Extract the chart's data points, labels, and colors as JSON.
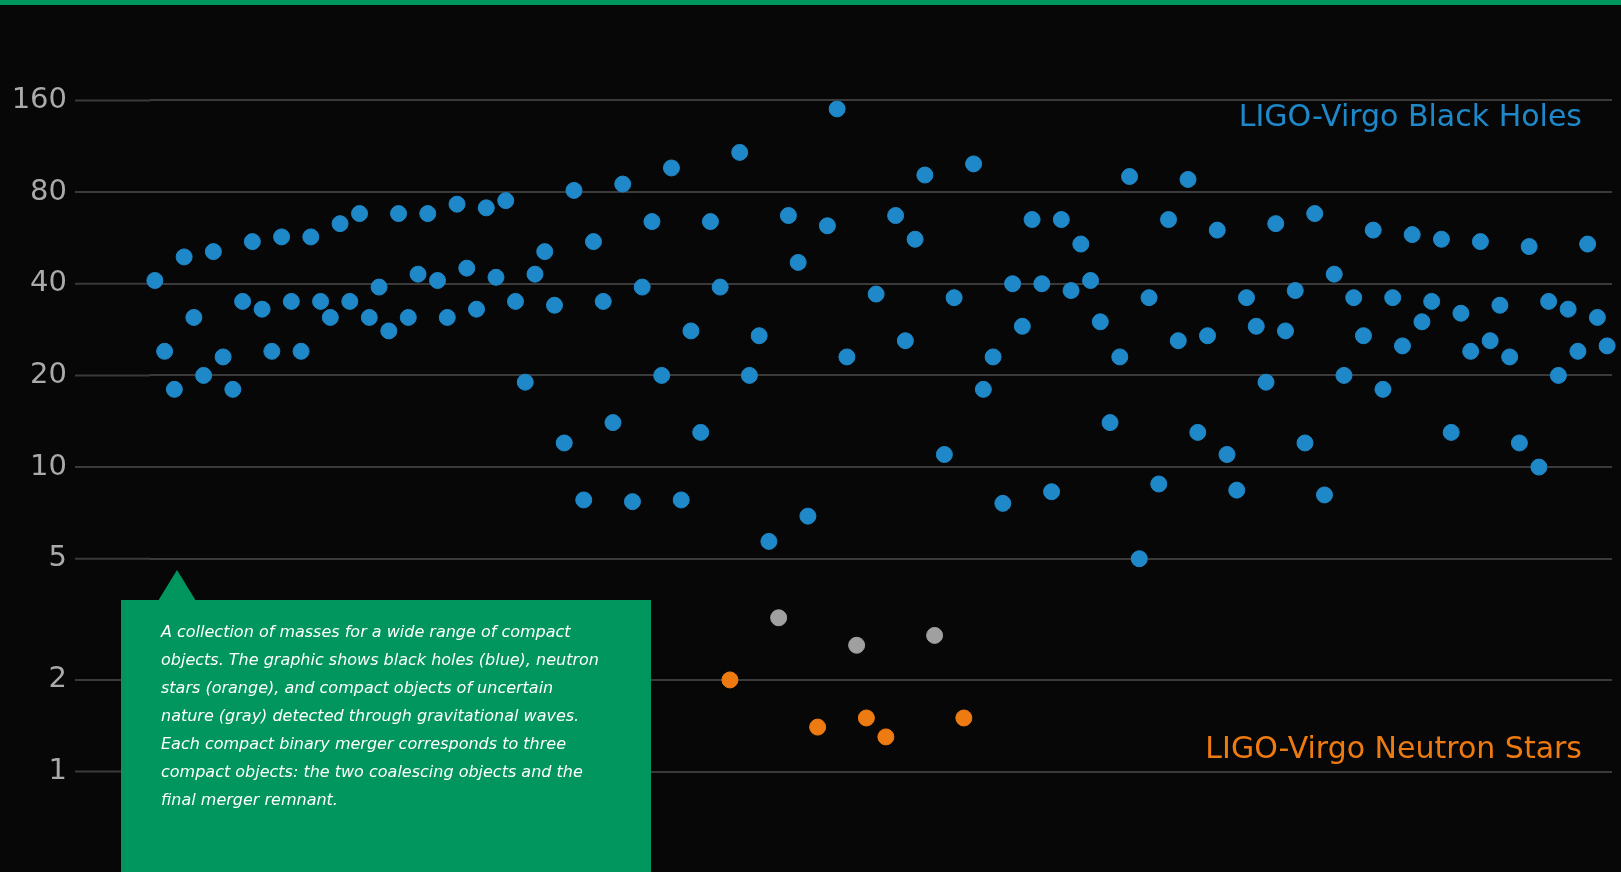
{
  "chart_data": {
    "type": "scatter",
    "log": "y",
    "ylim": [
      1,
      160
    ],
    "yticks": [
      1,
      2,
      5,
      10,
      20,
      40,
      80,
      160
    ],
    "tick_labels": "y",
    "grid": "y",
    "legend": false,
    "marker": "circle",
    "annotations": [
      "A collection of masses for a wide range of compact objects. The graphic shows black holes (blue), neutron stars (orange), and compact objects of uncertain nature (gray) detected through gravitational waves. Each compact binary merger corresponds to three compact objects: the two coalescing objects and the final merger remnant."
    ],
    "categories": [
      null,
      null,
      null,
      null,
      null,
      null,
      null,
      null,
      null,
      null,
      null,
      null,
      null,
      null,
      null,
      null,
      null,
      null,
      null,
      null,
      null,
      null,
      null,
      null,
      null,
      null,
      null,
      null,
      null,
      null,
      null,
      null,
      null,
      null,
      null,
      null,
      null,
      null,
      null,
      null,
      null,
      null,
      null,
      null,
      null,
      null,
      null,
      null,
      null,
      null,
      null,
      null,
      null,
      null,
      null,
      null,
      null,
      null,
      null,
      null,
      null,
      null,
      null,
      null,
      null,
      null,
      null,
      null,
      null,
      null,
      null,
      null,
      null,
      null,
      null,
      null,
      null,
      null,
      null,
      null,
      null,
      null,
      null,
      null,
      null,
      null,
      null,
      null,
      null,
      null,
      null,
      null,
      null,
      null,
      null,
      null,
      null,
      null,
      null,
      null,
      null,
      null,
      null,
      null,
      null,
      null,
      null,
      null,
      null,
      null,
      null,
      null,
      null,
      null,
      null,
      null,
      null,
      null,
      null,
      null,
      null,
      null,
      null,
      null,
      null,
      null,
      null,
      null,
      null,
      null,
      null,
      null,
      null,
      null,
      null,
      null,
      null,
      null,
      null,
      null,
      null,
      null,
      null,
      null,
      null,
      null,
      null,
      null,
      null,
      null
    ],
    "series": [
      {
        "name": "LIGO-Virgo Black Holes",
        "color": "#1e88c9",
        "values": [
          41,
          24,
          18,
          49,
          31,
          20,
          51,
          23,
          18,
          35,
          55,
          33,
          24,
          57,
          35,
          24,
          57,
          35,
          31,
          63,
          35,
          68,
          31,
          39,
          28,
          68,
          31,
          43,
          68,
          41,
          31,
          73,
          45,
          33,
          71,
          42,
          75,
          35,
          19,
          43,
          51,
          34,
          12,
          81,
          7.8,
          55,
          35,
          14,
          85,
          7.7,
          39,
          64,
          20,
          96,
          7.8,
          28,
          13,
          64,
          39,
          null,
          108,
          20,
          27,
          5.7,
          null,
          67,
          47,
          6.9,
          null,
          62,
          150,
          23,
          null,
          null,
          37,
          null,
          67,
          26,
          56,
          91,
          null,
          11,
          36,
          null,
          99,
          18,
          23,
          7.6,
          40,
          29,
          65,
          40,
          8.3,
          65,
          38,
          54,
          41,
          30,
          14,
          23,
          90,
          5,
          36,
          8.8,
          65,
          26,
          88,
          13,
          27,
          60,
          11,
          8.4,
          36,
          29,
          19,
          63,
          28,
          38,
          12,
          68,
          8.1,
          43,
          20,
          36,
          27,
          60,
          18,
          36,
          25,
          58,
          30,
          35,
          56,
          13,
          32,
          24,
          55,
          26,
          34,
          23,
          12,
          53,
          10,
          35,
          20,
          33,
          24,
          54,
          31,
          25
        ]
      },
      {
        "name": "LIGO-Virgo Neutron Stars",
        "color": "#ee7a12",
        "values": [
          null,
          null,
          null,
          null,
          null,
          null,
          null,
          null,
          null,
          null,
          null,
          null,
          null,
          null,
          null,
          null,
          null,
          null,
          null,
          null,
          null,
          null,
          null,
          null,
          null,
          null,
          null,
          null,
          null,
          null,
          null,
          null,
          null,
          null,
          null,
          null,
          null,
          null,
          null,
          null,
          null,
          null,
          null,
          null,
          null,
          null,
          null,
          null,
          null,
          null,
          null,
          null,
          null,
          null,
          null,
          null,
          null,
          null,
          null,
          2.0,
          null,
          null,
          null,
          null,
          null,
          null,
          null,
          null,
          1.4,
          null,
          null,
          null,
          null,
          1.5,
          null,
          1.3,
          null,
          null,
          null,
          null,
          null,
          null,
          null,
          1.5,
          null,
          null,
          null,
          null,
          null,
          null,
          null,
          null,
          null,
          null,
          null,
          null,
          null,
          null,
          null,
          null,
          null,
          null,
          null,
          null,
          null,
          null,
          null,
          null,
          null,
          null,
          null,
          null,
          null,
          null,
          null,
          null,
          null,
          null,
          null,
          null,
          null,
          null,
          null,
          null,
          null,
          null,
          null,
          null,
          null,
          null,
          null,
          null,
          null,
          null,
          null,
          null,
          null,
          null,
          null,
          null,
          null,
          null,
          null,
          null,
          null,
          null,
          null,
          null,
          null,
          null
        ]
      },
      {
        "color": "#a0a0a0",
        "values": [
          null,
          null,
          null,
          null,
          null,
          null,
          null,
          null,
          null,
          null,
          null,
          null,
          null,
          null,
          null,
          null,
          null,
          null,
          null,
          null,
          null,
          null,
          null,
          null,
          null,
          null,
          null,
          null,
          null,
          null,
          null,
          null,
          null,
          null,
          null,
          null,
          null,
          null,
          null,
          null,
          null,
          null,
          null,
          null,
          null,
          null,
          null,
          null,
          null,
          null,
          null,
          null,
          null,
          null,
          null,
          null,
          null,
          null,
          null,
          null,
          null,
          null,
          null,
          null,
          3.2,
          null,
          null,
          null,
          null,
          null,
          null,
          null,
          2.6,
          null,
          null,
          null,
          null,
          null,
          null,
          null,
          2.8,
          null,
          null,
          null,
          null,
          null,
          null,
          null,
          null,
          null,
          null,
          null,
          null,
          null,
          null,
          null,
          null,
          null,
          null,
          null,
          null,
          null,
          null,
          null,
          null,
          null,
          null,
          null,
          null,
          null,
          null,
          null,
          null,
          null,
          null,
          null,
          null,
          null,
          null,
          null,
          null,
          null,
          null,
          null,
          null,
          null,
          null,
          null,
          null,
          null,
          null,
          null,
          null,
          null,
          null,
          null,
          null,
          null,
          null,
          null,
          null,
          null,
          null,
          null,
          null,
          null,
          null,
          null,
          null,
          null
        ]
      }
    ]
  }
}
